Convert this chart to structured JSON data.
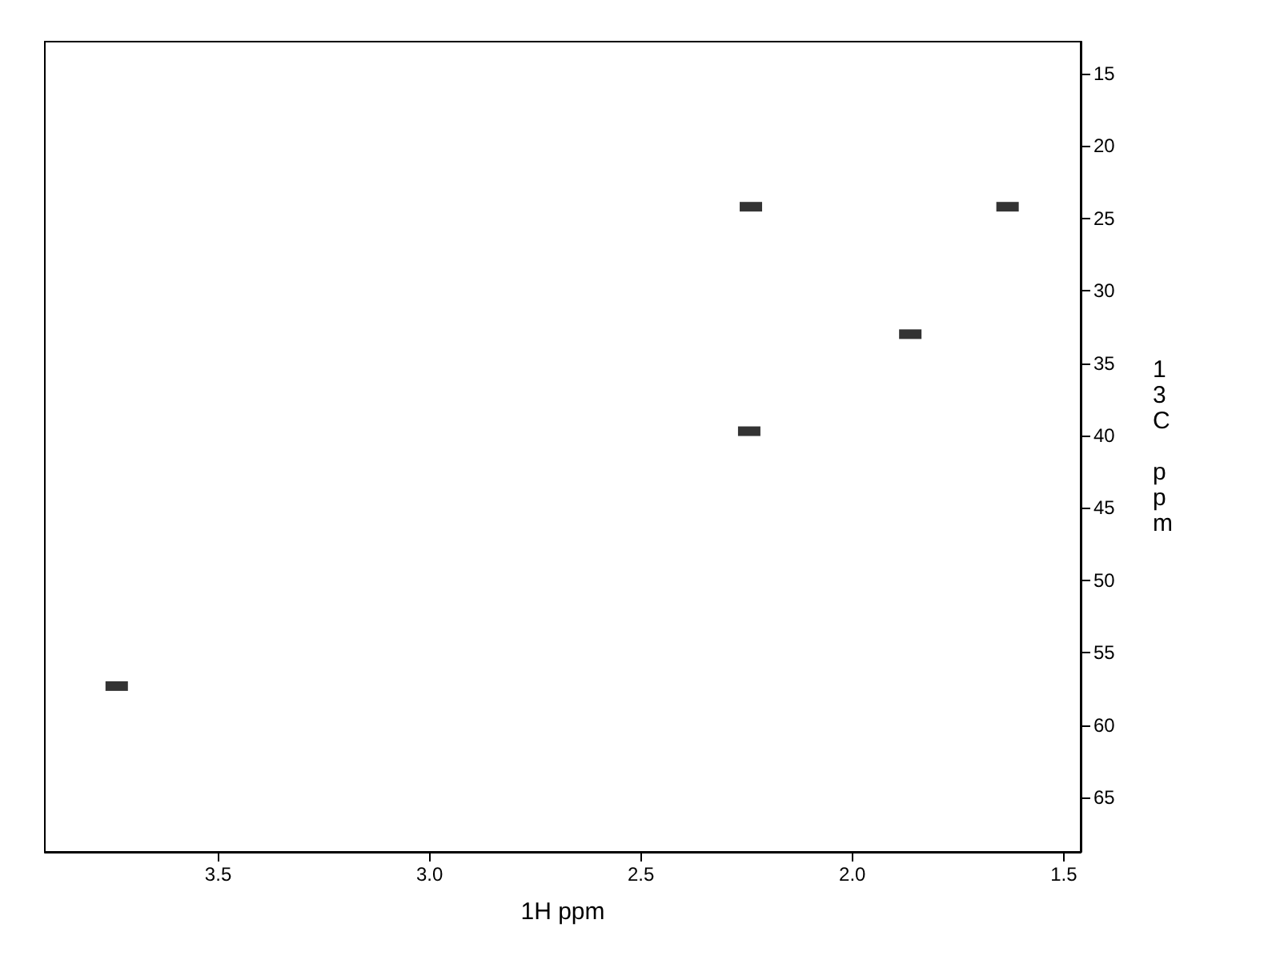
{
  "chart_data": {
    "type": "scatter",
    "xlabel": "1H ppm",
    "ylabel": "13C ppm",
    "x": [
      3.74,
      2.244,
      1.863,
      1.633,
      2.24
    ],
    "values": [
      57.3,
      39.7,
      33.0,
      24.2,
      24.2
    ],
    "color": "#000000",
    "marker": "square",
    "grid": false,
    "xlim": [
      3.91,
      1.46
    ],
    "xticks": [
      3.5,
      {
        "value": 3,
        "label": "3.0"
      },
      2.5,
      {
        "value": 2,
        "label": "2.0"
      },
      1.5
    ],
    "ylim": [
      68.75,
      12.8
    ],
    "yticks": [
      15,
      20,
      25,
      30,
      35,
      40,
      45,
      50,
      55,
      60,
      65
    ]
  }
}
